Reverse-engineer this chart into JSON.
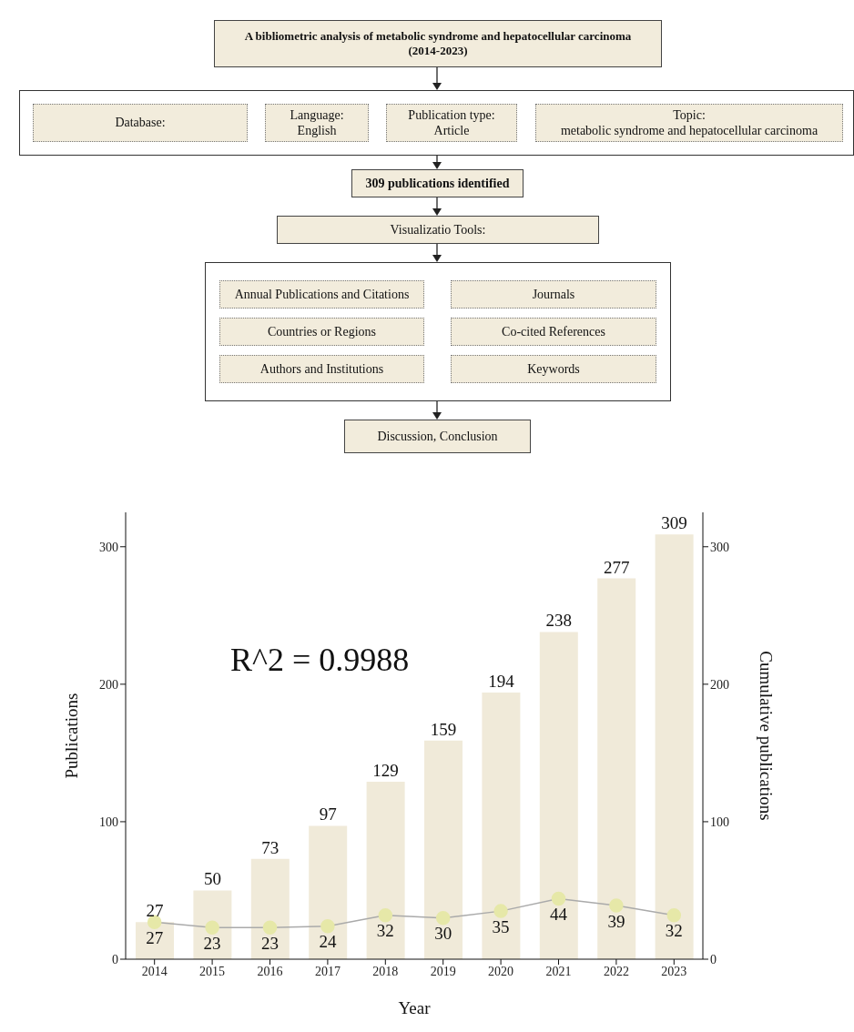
{
  "chart_data": [
    {
      "type": "other",
      "title": "A bibliometric analysis of metabolic syndrome and hepatocellular carcinoma (2014-2023)",
      "annotations": [
        "Database:",
        "Language:\nEnglish",
        "Publication type:\nArticle",
        "Topic:\nmetabolic syndrome and hepatocellular carcinoma",
        "309 publications identified",
        "Visualizatio Tools:",
        "Annual Publications and Citations",
        "Journals",
        "Countries or Regions",
        "Co-cited References",
        "Authors and Institutions",
        "Keywords",
        "Discussion, Conclusion"
      ]
    },
    {
      "type": "bar",
      "categories": [
        "2014",
        "2015",
        "2016",
        "2017",
        "2018",
        "2019",
        "2020",
        "2021",
        "2022",
        "2023"
      ],
      "series": [
        {
          "type": "bar",
          "axis": "y2",
          "color": "#f0ead9",
          "values": [
            27,
            50,
            73,
            97,
            129,
            159,
            194,
            238,
            277,
            309
          ]
        },
        {
          "type": "line",
          "axis": "y",
          "color": "#e6e8a8",
          "marker": "circle",
          "values": [
            27,
            23,
            23,
            24,
            32,
            30,
            35,
            44,
            39,
            32
          ]
        }
      ],
      "data_labels": true,
      "xlabel": "Year",
      "ylabel": "Publications",
      "y2label": "Cumulative publications",
      "annotations": [
        "R^2 = 0.9988"
      ],
      "ylim": [
        0,
        325
      ],
      "yticks": [
        0,
        100,
        200,
        300
      ],
      "y2lim": [
        0,
        325
      ],
      "y2ticks": [
        0,
        100,
        200,
        300
      ],
      "grid": false
    }
  ]
}
